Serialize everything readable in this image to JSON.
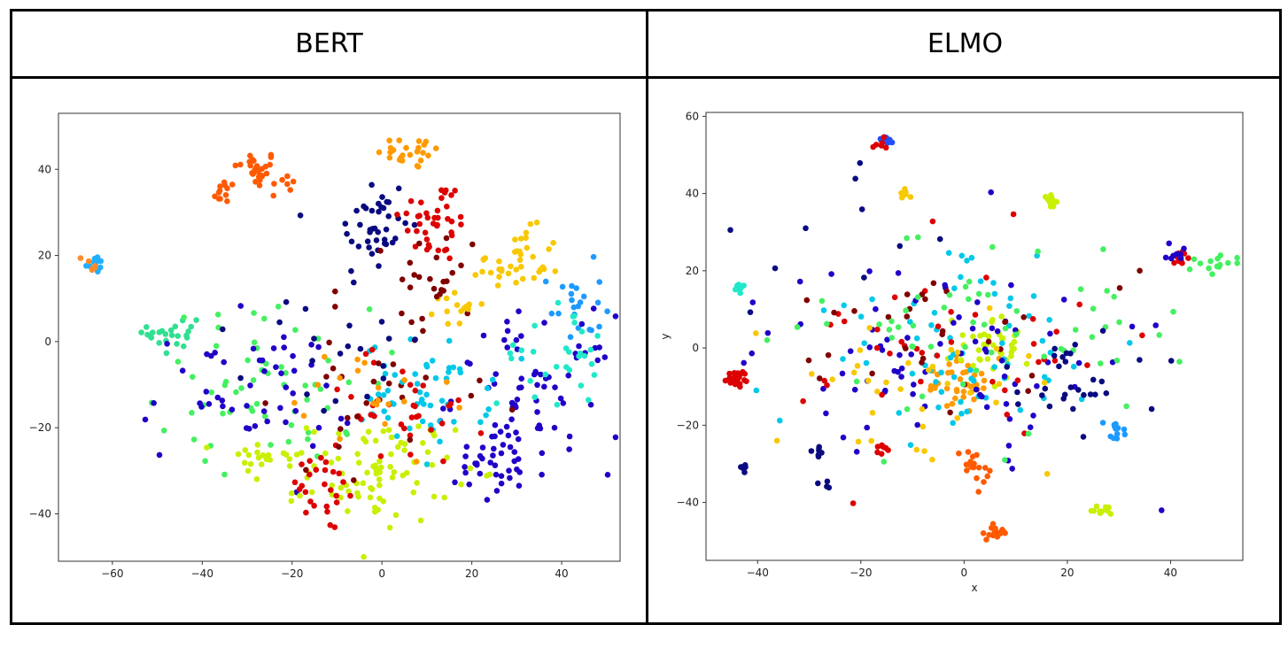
{
  "table": {
    "headers": [
      "BERT",
      "ELMO"
    ]
  },
  "chart_data": [
    {
      "type": "scatter",
      "title": "BERT",
      "xlabel": "",
      "ylabel": "",
      "xlim": [
        -72,
        53
      ],
      "ylim": [
        -51,
        53
      ],
      "xticks": [
        -60,
        -40,
        -20,
        0,
        20,
        40
      ],
      "yticks": [
        -40,
        -20,
        0,
        20,
        40
      ],
      "clusters": [
        {
          "color": "#ff5a00",
          "cx": -28,
          "cy": 40,
          "sx": 2.5,
          "sy": 2.2,
          "n": 28
        },
        {
          "color": "#ff5a00",
          "cx": -35,
          "cy": 35,
          "sx": 1.5,
          "sy": 1.5,
          "n": 12
        },
        {
          "color": "#ff5a00",
          "cx": -22,
          "cy": 35,
          "sx": 1.5,
          "sy": 1.5,
          "n": 6
        },
        {
          "color": "#ff9a00",
          "cx": 7,
          "cy": 44,
          "sx": 4,
          "sy": 2,
          "n": 25
        },
        {
          "color": "#1fb0ff",
          "cx": -64,
          "cy": 18,
          "sx": 1,
          "sy": 1,
          "n": 12
        },
        {
          "color": "#ff8a2a",
          "cx": -64,
          "cy": 18,
          "sx": 1.2,
          "sy": 1.2,
          "n": 6
        },
        {
          "color": "#0a0a80",
          "cx": -2,
          "cy": 26,
          "sx": 4,
          "sy": 7,
          "n": 42
        },
        {
          "color": "#dd0000",
          "cx": 12,
          "cy": 28,
          "sx": 4,
          "sy": 5,
          "n": 40
        },
        {
          "color": "#800000",
          "cx": 12,
          "cy": 15,
          "sx": 5,
          "sy": 6,
          "n": 22
        },
        {
          "color": "#f8c800",
          "cx": 30,
          "cy": 18,
          "sx": 5,
          "sy": 4,
          "n": 40
        },
        {
          "color": "#f8c800",
          "cx": 16,
          "cy": 8,
          "sx": 2,
          "sy": 2,
          "n": 14
        },
        {
          "color": "#1e9aff",
          "cx": 43,
          "cy": 8,
          "sx": 3,
          "sy": 5,
          "n": 22
        },
        {
          "color": "#30e090",
          "cx": -46,
          "cy": 2,
          "sx": 3,
          "sy": 3,
          "n": 24
        },
        {
          "color": "#44f060",
          "cx": -26,
          "cy": -10,
          "sx": 12,
          "sy": 9,
          "n": 60
        },
        {
          "color": "#2000c8",
          "cx": -30,
          "cy": -12,
          "sx": 12,
          "sy": 8,
          "n": 50
        },
        {
          "color": "#2000c8",
          "cx": 34,
          "cy": -12,
          "sx": 9,
          "sy": 9,
          "n": 75
        },
        {
          "color": "#2000c8",
          "cx": 25,
          "cy": -30,
          "sx": 6,
          "sy": 4,
          "n": 30
        },
        {
          "color": "#00c8e8",
          "cx": 10,
          "cy": -12,
          "sx": 7,
          "sy": 6,
          "n": 55
        },
        {
          "color": "#20e8c8",
          "cx": 38,
          "cy": -3,
          "sx": 6,
          "sy": 6,
          "n": 30
        },
        {
          "color": "#c8f000",
          "cx": 0,
          "cy": -30,
          "sx": 8,
          "sy": 6,
          "n": 85
        },
        {
          "color": "#c8f000",
          "cx": -27,
          "cy": -28,
          "sx": 5,
          "sy": 3,
          "n": 22
        },
        {
          "color": "#dd0000",
          "cx": -14,
          "cy": -35,
          "sx": 5,
          "sy": 5,
          "n": 25
        },
        {
          "color": "#dd0000",
          "cx": 3,
          "cy": -15,
          "sx": 10,
          "sy": 7,
          "n": 35
        },
        {
          "color": "#800000",
          "cx": 2,
          "cy": -10,
          "sx": 12,
          "sy": 9,
          "n": 30
        },
        {
          "color": "#ff9a00",
          "cx": -5,
          "cy": -15,
          "sx": 10,
          "sy": 8,
          "n": 20
        },
        {
          "color": "#0a0a80",
          "cx": -10,
          "cy": -5,
          "sx": 10,
          "sy": 8,
          "n": 20
        }
      ]
    },
    {
      "type": "scatter",
      "title": "ELMO",
      "xlabel": "x",
      "ylabel": "y",
      "xlim": [
        -50,
        54
      ],
      "ylim": [
        -55,
        61
      ],
      "xticks": [
        -40,
        -20,
        0,
        20,
        40
      ],
      "yticks": [
        -40,
        -20,
        0,
        20,
        40,
        60
      ],
      "clusters": [
        {
          "color": "#2050ff",
          "cx": -15,
          "cy": 54,
          "sx": 0.8,
          "sy": 0.8,
          "n": 14
        },
        {
          "color": "#dd0000",
          "cx": -16,
          "cy": 53,
          "sx": 0.8,
          "sy": 0.8,
          "n": 6
        },
        {
          "color": "#c8f000",
          "cx": 17,
          "cy": 38,
          "sx": 0.9,
          "sy": 0.9,
          "n": 14
        },
        {
          "color": "#f8c800",
          "cx": -12,
          "cy": 40,
          "sx": 0.8,
          "sy": 0.8,
          "n": 8
        },
        {
          "color": "#20e8c8",
          "cx": -44,
          "cy": 15,
          "sx": 0.6,
          "sy": 0.6,
          "n": 8
        },
        {
          "color": "#dd0000",
          "cx": -44,
          "cy": -8,
          "sx": 1,
          "sy": 1,
          "n": 24
        },
        {
          "color": "#ff5a00",
          "cx": 6,
          "cy": -48,
          "sx": 1.5,
          "sy": 0.8,
          "n": 18
        },
        {
          "color": "#c8f000",
          "cx": 27,
          "cy": -42,
          "sx": 1,
          "sy": 0.6,
          "n": 12
        },
        {
          "color": "#0a0a80",
          "cx": -28,
          "cy": -27,
          "sx": 0.7,
          "sy": 0.7,
          "n": 8
        },
        {
          "color": "#0a0a80",
          "cx": -43,
          "cy": -31,
          "sx": 0.7,
          "sy": 0.7,
          "n": 6
        },
        {
          "color": "#dd0000",
          "cx": -16,
          "cy": -26,
          "sx": 0.7,
          "sy": 0.7,
          "n": 8
        },
        {
          "color": "#ff5a00",
          "cx": 2,
          "cy": -30,
          "sx": 2,
          "sy": 3,
          "n": 18
        },
        {
          "color": "#dd0000",
          "cx": 42,
          "cy": 23,
          "sx": 1,
          "sy": 1,
          "n": 12
        },
        {
          "color": "#2000c8",
          "cx": 41,
          "cy": 24,
          "sx": 1,
          "sy": 1,
          "n": 8
        },
        {
          "color": "#ff9a00",
          "cx": -1,
          "cy": -9,
          "sx": 4,
          "sy": 3,
          "n": 40
        },
        {
          "color": "#c8f000",
          "cx": 6,
          "cy": 0,
          "sx": 4,
          "sy": 4,
          "n": 40
        },
        {
          "color": "#00c8e8",
          "cx": -4,
          "cy": 0,
          "sx": 14,
          "sy": 12,
          "n": 70
        },
        {
          "color": "#2000c8",
          "cx": -5,
          "cy": -2,
          "sx": 16,
          "sy": 12,
          "n": 80
        },
        {
          "color": "#dd0000",
          "cx": 0,
          "cy": 0,
          "sx": 18,
          "sy": 14,
          "n": 40
        },
        {
          "color": "#800000",
          "cx": -3,
          "cy": 2,
          "sx": 14,
          "sy": 12,
          "n": 30
        },
        {
          "color": "#44f060",
          "cx": 10,
          "cy": 5,
          "sx": 18,
          "sy": 12,
          "n": 60
        },
        {
          "color": "#f8c800",
          "cx": -10,
          "cy": -12,
          "sx": 16,
          "sy": 10,
          "n": 35
        },
        {
          "color": "#0a0a80",
          "cx": 22,
          "cy": -8,
          "sx": 8,
          "sy": 6,
          "n": 30
        },
        {
          "color": "#44f060",
          "cx": 48,
          "cy": 22,
          "sx": 3,
          "sy": 2,
          "n": 14
        },
        {
          "color": "#0a0a80",
          "cx": -20,
          "cy": 30,
          "sx": 10,
          "sy": 10,
          "n": 10
        },
        {
          "color": "#1e9aff",
          "cx": 30,
          "cy": -21,
          "sx": 1.5,
          "sy": 1.5,
          "n": 12
        },
        {
          "color": "#0a0a80",
          "cx": -27,
          "cy": -35,
          "sx": 0.6,
          "sy": 0.6,
          "n": 4
        }
      ]
    }
  ]
}
